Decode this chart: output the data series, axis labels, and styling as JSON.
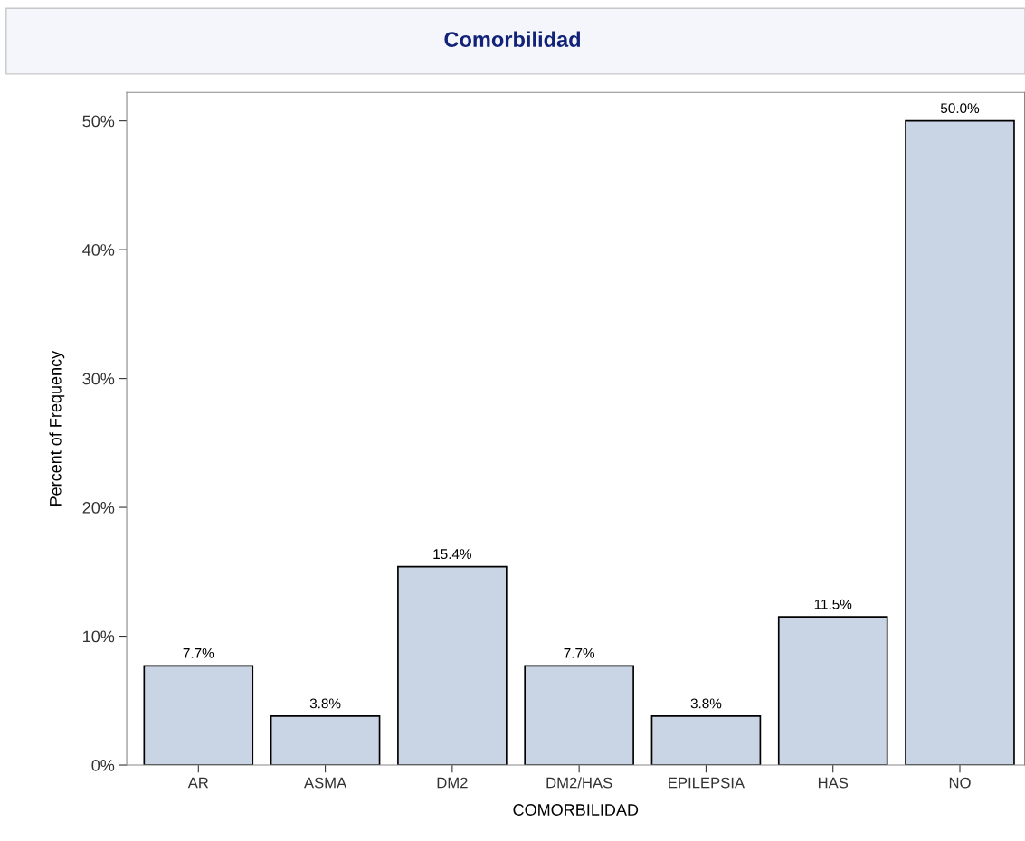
{
  "chart_data": {
    "type": "bar",
    "title": "Comorbilidad",
    "xlabel": "COMORBILIDAD",
    "ylabel": "Percent of Frequency",
    "categories": [
      "AR",
      "ASMA",
      "DM2",
      "DM2/HAS",
      "EPILEPSIA",
      "HAS",
      "NO"
    ],
    "values": [
      7.7,
      3.8,
      15.4,
      7.7,
      3.8,
      11.5,
      50.0
    ],
    "value_labels": [
      "7.7%",
      "3.8%",
      "15.4%",
      "7.7%",
      "3.8%",
      "11.5%",
      "50.0%"
    ],
    "color": "#c9d4e5",
    "ylim": [
      0,
      52.2
    ],
    "yticks": [
      {
        "value": 0,
        "label": "0%"
      },
      {
        "value": 10,
        "label": "10%"
      },
      {
        "value": 20,
        "label": "20%"
      },
      {
        "value": 30,
        "label": "30%"
      },
      {
        "value": 40,
        "label": "40%"
      },
      {
        "value": 50,
        "label": "50%"
      }
    ],
    "grid": false,
    "legend": false
  }
}
